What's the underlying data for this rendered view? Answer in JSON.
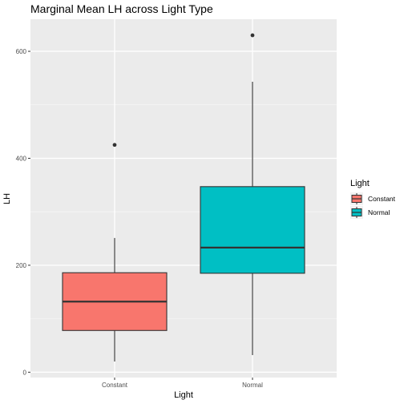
{
  "chart_data": {
    "type": "box",
    "title": "Marginal Mean LH across Light Type",
    "xlabel": "Light",
    "ylabel": "LH",
    "categories": [
      "Constant",
      "Normal"
    ],
    "yticks": [
      0,
      200,
      400,
      600
    ],
    "ylim": [
      -10,
      660
    ],
    "grid": true,
    "legend": {
      "title": "Light",
      "position": "right",
      "entries": [
        "Constant",
        "Normal"
      ]
    },
    "series": [
      {
        "name": "Constant",
        "color": "#F8766D",
        "whisker_low": 20,
        "q1": 78,
        "median": 132,
        "q3": 186,
        "whisker_high": 251,
        "outliers": [
          425
        ]
      },
      {
        "name": "Normal",
        "color": "#00BFC4",
        "whisker_low": 32,
        "q1": 185,
        "median": 233,
        "q3": 347,
        "whisker_high": 543,
        "outliers": [
          630
        ]
      }
    ]
  }
}
